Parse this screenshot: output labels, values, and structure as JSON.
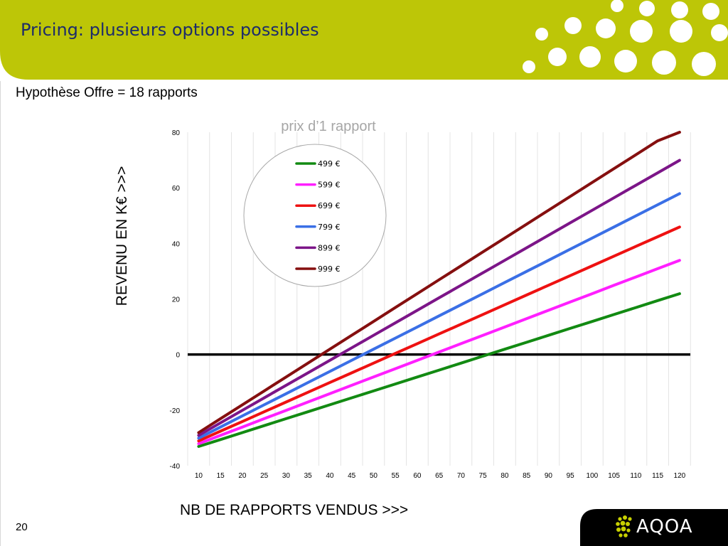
{
  "slide": {
    "title": "Pricing: plusieurs options possibles",
    "subtitle": "Hypothèse Offre = 18 rapports",
    "page_number": "20",
    "logo_text": "AQOA",
    "colors": {
      "header": "#bdc607",
      "title_text": "#1d2c6a",
      "logo_box": "#000000"
    }
  },
  "chart_data": {
    "type": "line",
    "title": "",
    "legend_title": "prix d’1 rapport",
    "legend_position": "top-center",
    "xlabel": "NB DE RAPPORTS VENDUS >>>",
    "ylabel": "REVENU EN K€ >>>",
    "x": [
      10,
      15,
      20,
      25,
      30,
      35,
      40,
      45,
      50,
      55,
      60,
      65,
      70,
      75,
      80,
      85,
      90,
      95,
      100,
      105,
      110,
      115,
      120
    ],
    "ylim": [
      -40,
      80
    ],
    "yticks": [
      -40,
      -20,
      0,
      20,
      40,
      60,
      80
    ],
    "grid": "vertical",
    "series": [
      {
        "name": "499 €",
        "color": "#128a12",
        "values": [
          -33.1,
          -30.6,
          -28.1,
          -25.6,
          -23.1,
          -20.6,
          -18.1,
          -15.6,
          -13.1,
          -10.6,
          -8.1,
          -5.6,
          -3.1,
          -0.6,
          1.9,
          4.4,
          6.9,
          9.4,
          11.9,
          14.4,
          16.9,
          19.4,
          21.9
        ]
      },
      {
        "name": "599 €",
        "color": "#ff1fff",
        "values": [
          -32.1,
          -29.1,
          -26.1,
          -23.1,
          -20.1,
          -17.1,
          -14.1,
          -11.1,
          -8.1,
          -5.1,
          -2.1,
          0.9,
          3.9,
          6.9,
          9.9,
          12.9,
          15.9,
          18.9,
          21.9,
          24.9,
          27.9,
          30.9,
          33.9
        ]
      },
      {
        "name": "699 €",
        "color": "#ee1111",
        "values": [
          -31.1,
          -27.6,
          -24.1,
          -20.6,
          -17.1,
          -13.6,
          -10.1,
          -6.6,
          -3.1,
          0.4,
          3.9,
          7.4,
          10.9,
          14.4,
          17.9,
          21.4,
          24.9,
          28.4,
          31.9,
          35.4,
          38.9,
          42.4,
          45.9
        ]
      },
      {
        "name": "799 €",
        "color": "#3a6fe6",
        "values": [
          -30.1,
          -26.1,
          -22.1,
          -18.1,
          -14.1,
          -10.1,
          -6.1,
          -2.1,
          1.9,
          5.9,
          9.9,
          13.9,
          17.9,
          21.9,
          25.9,
          29.9,
          33.9,
          37.9,
          41.9,
          45.9,
          49.9,
          53.9,
          57.9
        ]
      },
      {
        "name": "899 €",
        "color": "#7c1588",
        "values": [
          -29.1,
          -24.6,
          -20.1,
          -15.6,
          -11.1,
          -6.6,
          -2.1,
          2.4,
          6.9,
          11.4,
          15.9,
          20.4,
          24.9,
          29.4,
          33.9,
          38.4,
          42.9,
          47.4,
          51.9,
          56.4,
          60.9,
          65.4,
          69.9
        ]
      },
      {
        "name": "999 €",
        "color": "#850f0f",
        "values": [
          -28.1,
          -23.1,
          -18.1,
          -13.1,
          -8.1,
          -3.1,
          1.9,
          6.9,
          11.9,
          16.9,
          21.9,
          26.9,
          31.9,
          36.9,
          41.9,
          46.9,
          51.9,
          56.9,
          61.9,
          66.9,
          71.9,
          76.9,
          81.9
        ]
      }
    ]
  }
}
